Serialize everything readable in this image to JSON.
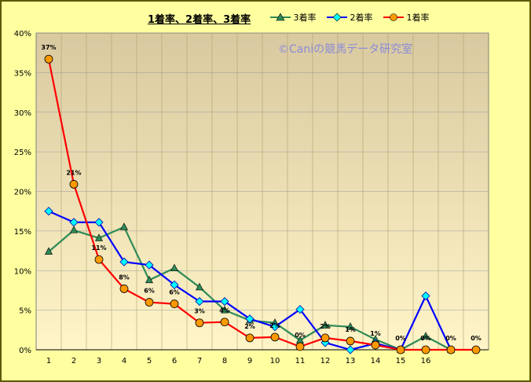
{
  "chart_data": {
    "type": "line",
    "title": "1着率、2着率、3着率",
    "watermark": "©Caniの競馬データ研究室",
    "x": [
      "1",
      "2",
      "3",
      "4",
      "5",
      "6",
      "7",
      "8",
      "9",
      "10",
      "11",
      "12",
      "13",
      "14",
      "15",
      "16",
      "",
      ""
    ],
    "ylim": [
      0,
      40
    ],
    "yticks": [
      "0%",
      "5%",
      "10%",
      "15%",
      "20%",
      "25%",
      "30%",
      "35%",
      "40%"
    ],
    "grid": true,
    "legend_position": "top",
    "series": [
      {
        "name": "3着率",
        "color": "#2e8b57",
        "marker": "triangle",
        "values": [
          12.4,
          15.1,
          14.1,
          15.5,
          8.8,
          10.3,
          7.9,
          5.0,
          3.7,
          3.4,
          1.2,
          3.1,
          2.9,
          1.3,
          0.0,
          1.7,
          0.0,
          null
        ]
      },
      {
        "name": "2着率",
        "color": "#0000ff",
        "marker": "diamond",
        "values": [
          17.5,
          16.1,
          16.1,
          11.1,
          10.7,
          8.2,
          6.1,
          6.1,
          3.9,
          2.9,
          5.1,
          0.9,
          0.0,
          0.8,
          0.0,
          6.8,
          0.0,
          null
        ]
      },
      {
        "name": "1着率",
        "color": "#ff0000",
        "marker": "circle",
        "values": [
          36.7,
          20.9,
          11.4,
          7.7,
          6.0,
          5.8,
          3.4,
          3.5,
          1.5,
          1.6,
          0.4,
          1.5,
          1.1,
          0.6,
          0.0,
          0.0,
          0.0,
          0.0
        ]
      }
    ],
    "data_labels": [
      "37%",
      "21%",
      "11%",
      "8%",
      "6%",
      "6%",
      "3%",
      "4%",
      "2%",
      "2%",
      "0%",
      "2%",
      "1%",
      "1%",
      "0%",
      "0%",
      "0%",
      "0%"
    ]
  },
  "legend": {
    "s3": "3着率",
    "s2": "2着率",
    "s1": "1着率"
  }
}
